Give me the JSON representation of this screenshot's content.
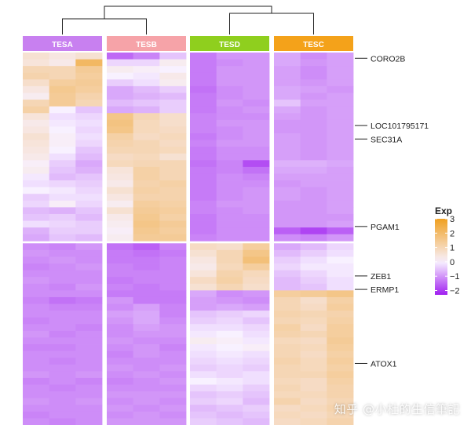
{
  "chart_data": {
    "type": "heatmap",
    "title": "",
    "groups": [
      {
        "name": "TESA",
        "color": "#c880f0"
      },
      {
        "name": "TESB",
        "color": "#f6a3a8"
      },
      {
        "name": "TESD",
        "color": "#8fcf1e"
      },
      {
        "name": "TESC",
        "color": "#f4a21a"
      }
    ],
    "gene_labels": [
      {
        "name": "CORO2B",
        "row": 0
      },
      {
        "name": "LOC101795171",
        "row": 10
      },
      {
        "name": "SEC31A",
        "row": 12
      },
      {
        "name": "PGAM1",
        "row": 25
      },
      {
        "name": "ZEB1",
        "row": 32
      },
      {
        "name": "ERMP1",
        "row": 34
      },
      {
        "name": "ATOX1",
        "row": 45
      }
    ],
    "row_count": 55,
    "row_split": 28,
    "col_count": 12,
    "blocks": [
      {
        "rows": [
          0,
          27
        ],
        "values": [
          [
            0.6,
            0.4,
            0.6,
            -1.5,
            -1.2,
            -0.5,
            -1.3,
            -1.0,
            -1.0,
            -0.8,
            -1.1,
            -0.9
          ],
          [
            0.5,
            0.3,
            2.1,
            -0.3,
            -0.3,
            0.2,
            -1.3,
            -1.1,
            -1.0,
            -0.8,
            -1.0,
            -0.9
          ],
          [
            1.0,
            1.0,
            1.4,
            0.2,
            0.1,
            0.0,
            -1.3,
            -1.0,
            -1.0,
            -0.9,
            -1.1,
            -0.9
          ],
          [
            1.1,
            1.0,
            1.3,
            0.0,
            -0.1,
            0.3,
            -1.3,
            -1.0,
            -1.0,
            -0.9,
            -1.1,
            -0.9
          ],
          [
            0.7,
            1.3,
            1.4,
            -0.4,
            -0.2,
            0.2,
            -1.3,
            -1.0,
            -1.0,
            -0.9,
            -1.0,
            -0.9
          ],
          [
            0.4,
            1.5,
            1.3,
            -0.8,
            -0.6,
            -0.4,
            -1.4,
            -1.1,
            -1.0,
            -0.8,
            -0.9,
            -1.0
          ],
          [
            0.2,
            1.4,
            1.1,
            -0.8,
            -0.7,
            -0.6,
            -1.3,
            -1.1,
            -1.0,
            -0.8,
            -1.0,
            -0.9
          ],
          [
            1.0,
            1.4,
            1.0,
            -0.6,
            -0.5,
            -0.4,
            -1.3,
            -1.0,
            -1.1,
            -0.5,
            -0.9,
            -0.9
          ],
          [
            1.2,
            0.0,
            -0.5,
            -0.8,
            -0.7,
            -0.4,
            -1.3,
            -1.1,
            -1.0,
            -0.8,
            -1.0,
            -0.9
          ],
          [
            0.5,
            -0.2,
            -0.3,
            1.6,
            1.0,
            0.7,
            -1.2,
            -1.1,
            -1.1,
            -0.9,
            -1.0,
            -0.9
          ],
          [
            0.3,
            -0.1,
            -0.2,
            1.7,
            0.9,
            0.7,
            -1.2,
            -1.0,
            -1.0,
            -1.0,
            -1.0,
            -0.9
          ],
          [
            0.4,
            0.0,
            -0.3,
            1.6,
            0.9,
            0.8,
            -1.2,
            -1.1,
            -1.0,
            -1.0,
            -1.0,
            -0.9
          ],
          [
            0.6,
            0.1,
            -0.2,
            1.2,
            0.8,
            0.9,
            -1.3,
            -1.1,
            -1.0,
            -0.9,
            -1.0,
            -0.9
          ],
          [
            0.5,
            0.1,
            -0.3,
            1.1,
            1.0,
            0.8,
            -1.2,
            -1.0,
            -1.0,
            -0.9,
            -1.0,
            -0.9
          ],
          [
            0.4,
            0.0,
            -0.5,
            1.0,
            1.0,
            0.9,
            -1.3,
            -1.1,
            -1.1,
            -0.9,
            -1.0,
            -0.9
          ],
          [
            0.3,
            -0.2,
            -0.6,
            0.8,
            0.9,
            0.6,
            -1.3,
            -1.1,
            -1.1,
            -0.9,
            -1.0,
            -0.9
          ],
          [
            0.1,
            -0.4,
            -0.8,
            0.9,
            1.0,
            1.0,
            -1.4,
            -1.2,
            -1.8,
            -0.7,
            -0.7,
            -0.8
          ],
          [
            0.2,
            -0.5,
            -0.7,
            0.5,
            1.2,
            1.0,
            -1.3,
            -1.2,
            -1.4,
            -0.8,
            -0.8,
            -0.9
          ],
          [
            -0.1,
            -0.6,
            -0.5,
            0.4,
            1.2,
            1.0,
            -1.3,
            -1.1,
            -1.2,
            -0.9,
            -0.9,
            -0.9
          ],
          [
            -0.2,
            -0.3,
            -0.4,
            0.3,
            1.1,
            1.2,
            -1.3,
            -1.1,
            -1.1,
            -1.0,
            -0.9,
            -0.9
          ],
          [
            0.0,
            -0.1,
            -0.3,
            0.6,
            1.2,
            1.1,
            -1.3,
            -1.1,
            -1.0,
            -0.9,
            -1.0,
            -0.9
          ],
          [
            -0.4,
            -0.2,
            -0.2,
            0.4,
            1.1,
            1.1,
            -1.3,
            -1.1,
            -1.0,
            -0.9,
            -1.0,
            -0.9
          ],
          [
            -0.3,
            0.1,
            -0.3,
            0.2,
            1.3,
            1.2,
            -1.2,
            -1.0,
            -1.0,
            -1.0,
            -1.0,
            -0.9
          ],
          [
            -0.6,
            -0.7,
            -0.5,
            0.6,
            1.4,
            1.3,
            -1.2,
            -1.1,
            -1.0,
            -1.0,
            -1.0,
            -0.9
          ],
          [
            -0.5,
            -0.4,
            -0.6,
            0.3,
            1.5,
            1.2,
            -1.3,
            -1.1,
            -1.1,
            -1.0,
            -1.0,
            -1.0
          ],
          [
            -0.2,
            -0.3,
            -0.4,
            0.2,
            1.6,
            1.4,
            -1.3,
            -1.1,
            -1.1,
            -1.0,
            -1.0,
            -0.9
          ],
          [
            -0.7,
            -0.4,
            -0.4,
            0.1,
            1.5,
            1.3,
            -1.3,
            -1.1,
            -1.1,
            -1.6,
            -1.9,
            -1.6
          ],
          [
            -0.8,
            -0.5,
            -0.6,
            0.2,
            1.4,
            1.4,
            -1.2,
            -1.1,
            -1.1,
            -1.1,
            -1.2,
            -1.0
          ]
        ]
      },
      {
        "rows": [
          28,
          54
        ],
        "values": [
          [
            -1.1,
            -1.2,
            -1.0,
            -1.4,
            -1.6,
            -1.2,
            0.8,
            0.7,
            1.3,
            -0.8,
            -0.6,
            -0.3
          ],
          [
            -1.0,
            -1.1,
            -1.1,
            -1.3,
            -1.4,
            -1.3,
            0.6,
            1.0,
            1.6,
            -0.6,
            -0.4,
            -0.2
          ],
          [
            -1.1,
            -1.0,
            -1.1,
            -1.3,
            -1.3,
            -1.2,
            0.4,
            1.0,
            1.8,
            -0.4,
            -0.2,
            0.0
          ],
          [
            -1.2,
            -1.1,
            -1.0,
            -1.2,
            -1.3,
            -1.2,
            0.3,
            0.9,
            1.3,
            -0.3,
            -0.1,
            -0.1
          ],
          [
            -1.1,
            -1.1,
            -1.1,
            -1.2,
            -1.2,
            -1.2,
            0.5,
            1.1,
            0.9,
            -0.5,
            -0.3,
            -0.1
          ],
          [
            -1.0,
            -1.1,
            -1.1,
            -1.3,
            -1.2,
            -1.2,
            0.8,
            1.2,
            0.8,
            -0.6,
            -0.4,
            -0.2
          ],
          [
            -1.1,
            -1.2,
            -1.0,
            -1.2,
            -1.3,
            -1.2,
            0.6,
            1.0,
            0.7,
            -0.6,
            -0.5,
            -0.2
          ],
          [
            -1.1,
            -1.1,
            -1.1,
            -1.3,
            -1.3,
            -1.3,
            -0.8,
            -1.1,
            -1.0,
            1.3,
            1.4,
            1.6
          ],
          [
            -1.2,
            -1.4,
            -1.3,
            -1.0,
            -1.3,
            -1.3,
            -0.9,
            -1.0,
            -1.1,
            1.0,
            0.7,
            1.2
          ],
          [
            -1.1,
            -1.2,
            -1.2,
            -1.1,
            -0.9,
            -1.2,
            -0.9,
            -0.8,
            -0.9,
            1.0,
            0.8,
            1.3
          ],
          [
            -1.1,
            -1.1,
            -1.1,
            -0.9,
            -0.8,
            -1.2,
            -0.5,
            -0.4,
            -0.3,
            1.1,
            1.0,
            1.1
          ],
          [
            -1.2,
            -1.1,
            -1.1,
            -1.0,
            -0.8,
            -1.1,
            -0.4,
            -0.3,
            -0.5,
            1.0,
            0.9,
            1.2
          ],
          [
            -1.1,
            -1.1,
            -1.2,
            -1.1,
            -0.9,
            -1.0,
            -0.2,
            -0.2,
            -0.3,
            1.2,
            0.8,
            1.3
          ],
          [
            -1.0,
            -1.2,
            -1.1,
            -1.1,
            -1.0,
            -1.0,
            -0.1,
            0.0,
            -0.2,
            1.1,
            1.0,
            1.3
          ],
          [
            -1.1,
            -1.1,
            -1.1,
            -1.0,
            -1.1,
            -1.1,
            0.2,
            0.1,
            -0.1,
            0.9,
            0.8,
            1.4
          ],
          [
            -1.2,
            -1.2,
            -1.1,
            -1.1,
            -1.0,
            -1.2,
            -0.1,
            0.0,
            0.1,
            1.0,
            0.9,
            1.3
          ],
          [
            -1.1,
            -1.1,
            -1.1,
            -1.2,
            -1.0,
            -1.1,
            -0.2,
            -0.1,
            -0.2,
            1.0,
            0.8,
            1.2
          ],
          [
            -1.1,
            -1.2,
            -1.1,
            -1.1,
            -1.1,
            -1.1,
            -0.3,
            -0.2,
            -0.3,
            1.1,
            0.9,
            1.3
          ],
          [
            -1.1,
            -1.1,
            -1.1,
            -1.0,
            -1.1,
            -1.0,
            -0.4,
            -0.3,
            -0.4,
            1.0,
            0.9,
            1.2
          ],
          [
            -1.0,
            -1.1,
            -1.0,
            -1.1,
            -1.0,
            -1.1,
            -0.2,
            -0.3,
            -0.2,
            1.0,
            1.0,
            1.3
          ],
          [
            -1.2,
            -1.1,
            -1.2,
            -1.2,
            -1.1,
            -1.0,
            0.0,
            -0.1,
            -0.2,
            0.9,
            0.8,
            1.2
          ],
          [
            -1.1,
            -1.2,
            -1.1,
            -1.1,
            -1.1,
            -1.1,
            -0.3,
            -0.2,
            -0.4,
            1.0,
            0.8,
            1.1
          ],
          [
            -1.1,
            -1.1,
            -1.1,
            -1.0,
            -1.0,
            -1.0,
            -0.5,
            -0.4,
            -0.5,
            0.9,
            0.9,
            1.1
          ],
          [
            -1.0,
            -1.1,
            -1.0,
            -1.1,
            -1.0,
            -1.1,
            -0.4,
            -0.3,
            -0.6,
            1.1,
            0.8,
            1.0
          ],
          [
            -1.1,
            -1.1,
            -1.1,
            -1.0,
            -1.1,
            -1.0,
            -0.6,
            -0.5,
            -0.4,
            0.8,
            0.9,
            1.1
          ],
          [
            -1.2,
            -1.1,
            -1.1,
            -1.1,
            -1.0,
            -1.1,
            -0.5,
            -0.6,
            -0.5,
            0.9,
            0.8,
            1.0
          ],
          [
            -1.1,
            -1.2,
            -1.1,
            -1.0,
            -1.0,
            -1.0,
            -0.4,
            -0.5,
            -0.6,
            0.8,
            0.9,
            1.1
          ]
        ]
      }
    ],
    "legend": {
      "title": "Exp",
      "ticks": [
        "3",
        "2",
        "1",
        "0",
        "−1",
        "−2"
      ],
      "range": [
        -2.3,
        3.0
      ],
      "placement": "right"
    },
    "color_scale": {
      "low": "#a020f0",
      "mid": "#f8f1ff",
      "high": "#f0a020"
    }
  },
  "watermark": "知乎 @小杜的生信筆記"
}
